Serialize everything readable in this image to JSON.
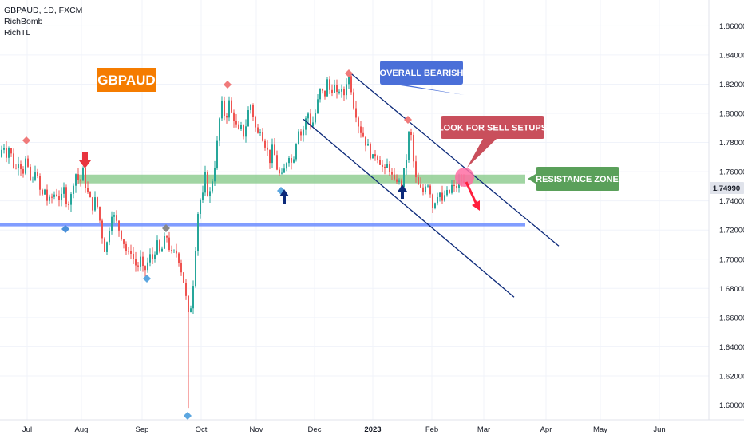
{
  "legend": {
    "symbol_line": "GBPAUD, 1D, FXCM",
    "indicator_1": "RichBomb",
    "indicator_2": "RichTL"
  },
  "price_tag": "1.74990",
  "labels": {
    "pair_badge": "GBPAUD",
    "overall_bearish": "OVERALL BEARISH",
    "look_for_sell": "LOOK FOR SELL SETUPS",
    "resistance_zone": "RESISTANCE ZONE"
  },
  "colors": {
    "up_candle": "#26a69a",
    "down_candle": "#ef5350",
    "resistance_zone": "#81c784",
    "support_zone": "#6b8cff",
    "pair_badge": "#f57c00",
    "overall_bearish_box": "#4a6fd8",
    "sell_box": "#c94f5c",
    "resistance_box": "#5aa05a",
    "channel": "#0d2a7a",
    "sell_arrow": "#ff1f3d",
    "buy_arrow": "#0d2a7a",
    "price_tag_bg": "#e0e3eb"
  },
  "chart_data": {
    "type": "candlestick",
    "symbol": "GBPAUD",
    "timeframe": "1D",
    "broker": "FXCM",
    "ylim": [
      1.59,
      1.87
    ],
    "y_ticks": [
      1.6,
      1.62,
      1.64,
      1.66,
      1.68,
      1.7,
      1.72,
      1.74,
      1.76,
      1.78,
      1.8,
      1.82,
      1.84,
      1.86
    ],
    "x_ticks": [
      "Jul",
      "Aug",
      "Sep",
      "Oct",
      "Nov",
      "Dec",
      "2023",
      "Feb",
      "Mar",
      "Apr",
      "May",
      "Jun"
    ],
    "last_price": 1.7499,
    "price_path": [
      [
        0,
        1.77
      ],
      [
        4,
        1.78
      ],
      [
        8,
        1.772
      ],
      [
        12,
        1.778
      ],
      [
        16,
        1.765
      ],
      [
        20,
        1.762
      ],
      [
        24,
        1.77
      ],
      [
        28,
        1.758
      ],
      [
        32,
        1.768
      ],
      [
        36,
        1.758
      ],
      [
        40,
        1.75
      ],
      [
        44,
        1.762
      ],
      [
        48,
        1.752
      ],
      [
        52,
        1.742
      ],
      [
        56,
        1.748
      ],
      [
        60,
        1.738
      ],
      [
        64,
        1.742
      ],
      [
        70,
        1.746
      ],
      [
        76,
        1.74
      ],
      [
        80,
        1.748
      ],
      [
        84,
        1.738
      ],
      [
        88,
        1.74
      ],
      [
        94,
        1.76
      ],
      [
        100,
        1.752
      ],
      [
        104,
        1.76
      ],
      [
        108,
        1.748
      ],
      [
        112,
        1.742
      ],
      [
        116,
        1.736
      ],
      [
        120,
        1.742
      ],
      [
        124,
        1.73
      ],
      [
        128,
        1.716
      ],
      [
        132,
        1.704
      ],
      [
        136,
        1.718
      ],
      [
        140,
        1.732
      ],
      [
        144,
        1.728
      ],
      [
        148,
        1.722
      ],
      [
        152,
        1.716
      ],
      [
        156,
        1.71
      ],
      [
        160,
        1.702
      ],
      [
        164,
        1.706
      ],
      [
        168,
        1.698
      ],
      [
        172,
        1.694
      ],
      [
        176,
        1.7
      ],
      [
        180,
        1.69
      ],
      [
        184,
        1.696
      ],
      [
        188,
        1.702
      ],
      [
        192,
        1.7
      ],
      [
        196,
        1.712
      ],
      [
        200,
        1.704
      ],
      [
        204,
        1.708
      ],
      [
        208,
        1.718
      ],
      [
        212,
        1.708
      ],
      [
        216,
        1.702
      ],
      [
        220,
        1.706
      ],
      [
        224,
        1.7
      ],
      [
        228,
        1.69
      ],
      [
        232,
        1.68
      ],
      [
        235,
        1.66
      ],
      [
        238,
        1.664
      ],
      [
        241,
        1.676
      ],
      [
        244,
        1.7
      ],
      [
        247,
        1.726
      ],
      [
        250,
        1.744
      ],
      [
        253,
        1.734
      ],
      [
        256,
        1.762
      ],
      [
        259,
        1.748
      ],
      [
        262,
        1.742
      ],
      [
        265,
        1.752
      ],
      [
        268,
        1.76
      ],
      [
        271,
        1.774
      ],
      [
        274,
        1.79
      ],
      [
        277,
        1.808
      ],
      [
        280,
        1.802
      ],
      [
        283,
        1.794
      ],
      [
        286,
        1.81
      ],
      [
        290,
        1.8
      ],
      [
        294,
        1.796
      ],
      [
        298,
        1.786
      ],
      [
        302,
        1.79
      ],
      [
        306,
        1.784
      ],
      [
        310,
        1.8
      ],
      [
        314,
        1.806
      ],
      [
        318,
        1.796
      ],
      [
        322,
        1.784
      ],
      [
        326,
        1.79
      ],
      [
        330,
        1.782
      ],
      [
        334,
        1.776
      ],
      [
        338,
        1.768
      ],
      [
        342,
        1.778
      ],
      [
        346,
        1.764
      ],
      [
        350,
        1.758
      ],
      [
        354,
        1.756
      ],
      [
        358,
        1.766
      ],
      [
        362,
        1.772
      ],
      [
        366,
        1.764
      ],
      [
        370,
        1.778
      ],
      [
        374,
        1.79
      ],
      [
        378,
        1.784
      ],
      [
        382,
        1.794
      ],
      [
        386,
        1.8
      ],
      [
        390,
        1.79
      ],
      [
        394,
        1.798
      ],
      [
        398,
        1.808
      ],
      [
        402,
        1.818
      ],
      [
        406,
        1.81
      ],
      [
        410,
        1.822
      ],
      [
        414,
        1.814
      ],
      [
        418,
        1.82
      ],
      [
        422,
        1.812
      ],
      [
        426,
        1.818
      ],
      [
        430,
        1.81
      ],
      [
        434,
        1.822
      ],
      [
        438,
        1.826
      ],
      [
        442,
        1.808
      ],
      [
        446,
        1.8
      ],
      [
        450,
        1.79
      ],
      [
        454,
        1.786
      ],
      [
        458,
        1.78
      ],
      [
        462,
        1.776
      ],
      [
        466,
        1.768
      ],
      [
        470,
        1.772
      ],
      [
        474,
        1.77
      ],
      [
        478,
        1.764
      ],
      [
        482,
        1.76
      ],
      [
        486,
        1.766
      ],
      [
        490,
        1.758
      ],
      [
        494,
        1.752
      ],
      [
        498,
        1.756
      ],
      [
        502,
        1.748
      ],
      [
        506,
        1.76
      ],
      [
        510,
        1.772
      ],
      [
        513,
        1.792
      ],
      [
        516,
        1.78
      ],
      [
        519,
        1.76
      ],
      [
        522,
        1.752
      ],
      [
        526,
        1.748
      ],
      [
        530,
        1.746
      ],
      [
        534,
        1.754
      ],
      [
        538,
        1.75
      ],
      [
        542,
        1.736
      ],
      [
        546,
        1.742
      ],
      [
        550,
        1.748
      ],
      [
        554,
        1.738
      ],
      [
        558,
        1.746
      ],
      [
        562,
        1.744
      ],
      [
        566,
        1.75
      ],
      [
        570,
        1.748
      ],
      [
        574,
        1.752
      ],
      [
        578,
        1.754
      ],
      [
        582,
        1.75
      ]
    ],
    "zones": [
      {
        "name": "Resistance Zone",
        "from": 1.752,
        "to": 1.758
      },
      {
        "name": "Support Zone",
        "from": 1.7225,
        "to": 1.7245
      }
    ],
    "channel": {
      "upper": [
        [
          "Dec",
          1.829
        ],
        [
          "Jun",
          1.709
        ]
      ],
      "lower": [
        [
          "Nov",
          1.796
        ],
        [
          "Apr",
          1.674
        ]
      ]
    },
    "annotations": [
      "GBPAUD",
      "OVERALL BEARISH",
      "LOOK FOR SELL SETUPS",
      "RESISTANCE ZONE"
    ]
  }
}
